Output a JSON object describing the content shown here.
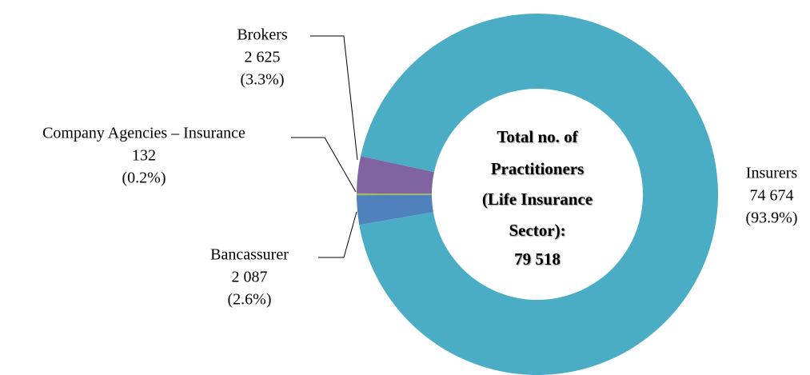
{
  "chart_data": {
    "type": "donut",
    "categories": [
      "Bancassurer",
      "Company Agencies – Insurance",
      "Brokers",
      "Insurers"
    ],
    "values": [
      2087,
      132,
      2625,
      74674
    ],
    "value_labels": [
      "2 087",
      "132",
      "2 625",
      "74 674"
    ],
    "percents": [
      2.6,
      0.2,
      3.3,
      93.9
    ],
    "percent_labels": [
      "(2.6%)",
      "(0.2%)",
      "(3.3%)",
      "(93.9%)"
    ],
    "colors": [
      "#4f81bd",
      "#9bbb59",
      "#8064a2",
      "#4bacc6"
    ],
    "center_label": [
      "Total no. of",
      "Practitioners",
      "(Life Insurance",
      "Sector):"
    ],
    "total": "79 518"
  }
}
